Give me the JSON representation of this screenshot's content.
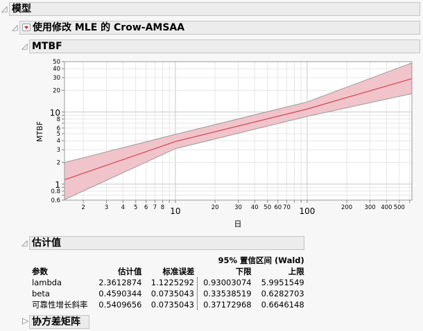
{
  "sections": {
    "model": {
      "label": "模型"
    },
    "crow": {
      "label": "使用修改 MLE 的 Crow-AMSAA"
    },
    "mtbf": {
      "label": "MTBF"
    },
    "estimates": {
      "label": "估计值"
    },
    "covariance": {
      "label": "协方差矩阵"
    }
  },
  "chart_data": {
    "type": "line",
    "title": "MTBF",
    "xlabel": "日",
    "ylabel": "MTBF",
    "xscale": "log",
    "yscale": "log",
    "xlim": [
      1.44,
      624
    ],
    "ylim": [
      0.6,
      50
    ],
    "x_ticks": [
      "2",
      "3",
      "4",
      "5",
      "6",
      "7",
      "8",
      "10",
      "20",
      "30",
      "40",
      "50",
      "60",
      "70",
      "100",
      "200",
      "300",
      "400",
      "500"
    ],
    "y_ticks": [
      "0.6",
      "0.8",
      "1",
      "2",
      "3",
      "4",
      "5",
      "6",
      "8",
      "10",
      "20",
      "30",
      "40",
      "50"
    ],
    "grid": true,
    "series": [
      {
        "name": "MTBF estimate",
        "color": "#d9414f",
        "x": [
          1.44,
          10,
          100,
          624
        ],
        "y": [
          1.15,
          3.9,
          11.0,
          29.0
        ]
      },
      {
        "name": "Upper 95% CI",
        "color": "#999999",
        "x": [
          1.44,
          10,
          100,
          624
        ],
        "y": [
          2.0,
          4.9,
          13.8,
          48.0
        ]
      },
      {
        "name": "Lower 95% CI",
        "color": "#999999",
        "x": [
          1.44,
          10,
          100,
          624
        ],
        "y": [
          0.61,
          3.1,
          8.7,
          18.0
        ]
      }
    ],
    "band_color": "#f0c4ca"
  },
  "estimates_table": {
    "ci_header": "95% 置信区间 (Wald)",
    "columns": [
      "参数",
      "估计值",
      "标准误差",
      "下限",
      "上限"
    ],
    "rows": [
      [
        "lambda",
        "2.3612874",
        "1.1225292",
        "0.93003074",
        "5.9951549"
      ],
      [
        "beta",
        "0.4590344",
        "0.0735043",
        "0.33538519",
        "0.6282703"
      ],
      [
        "可靠性增长斜率",
        "0.5409656",
        "0.0735043",
        "0.37172968",
        "0.6646148"
      ]
    ]
  }
}
